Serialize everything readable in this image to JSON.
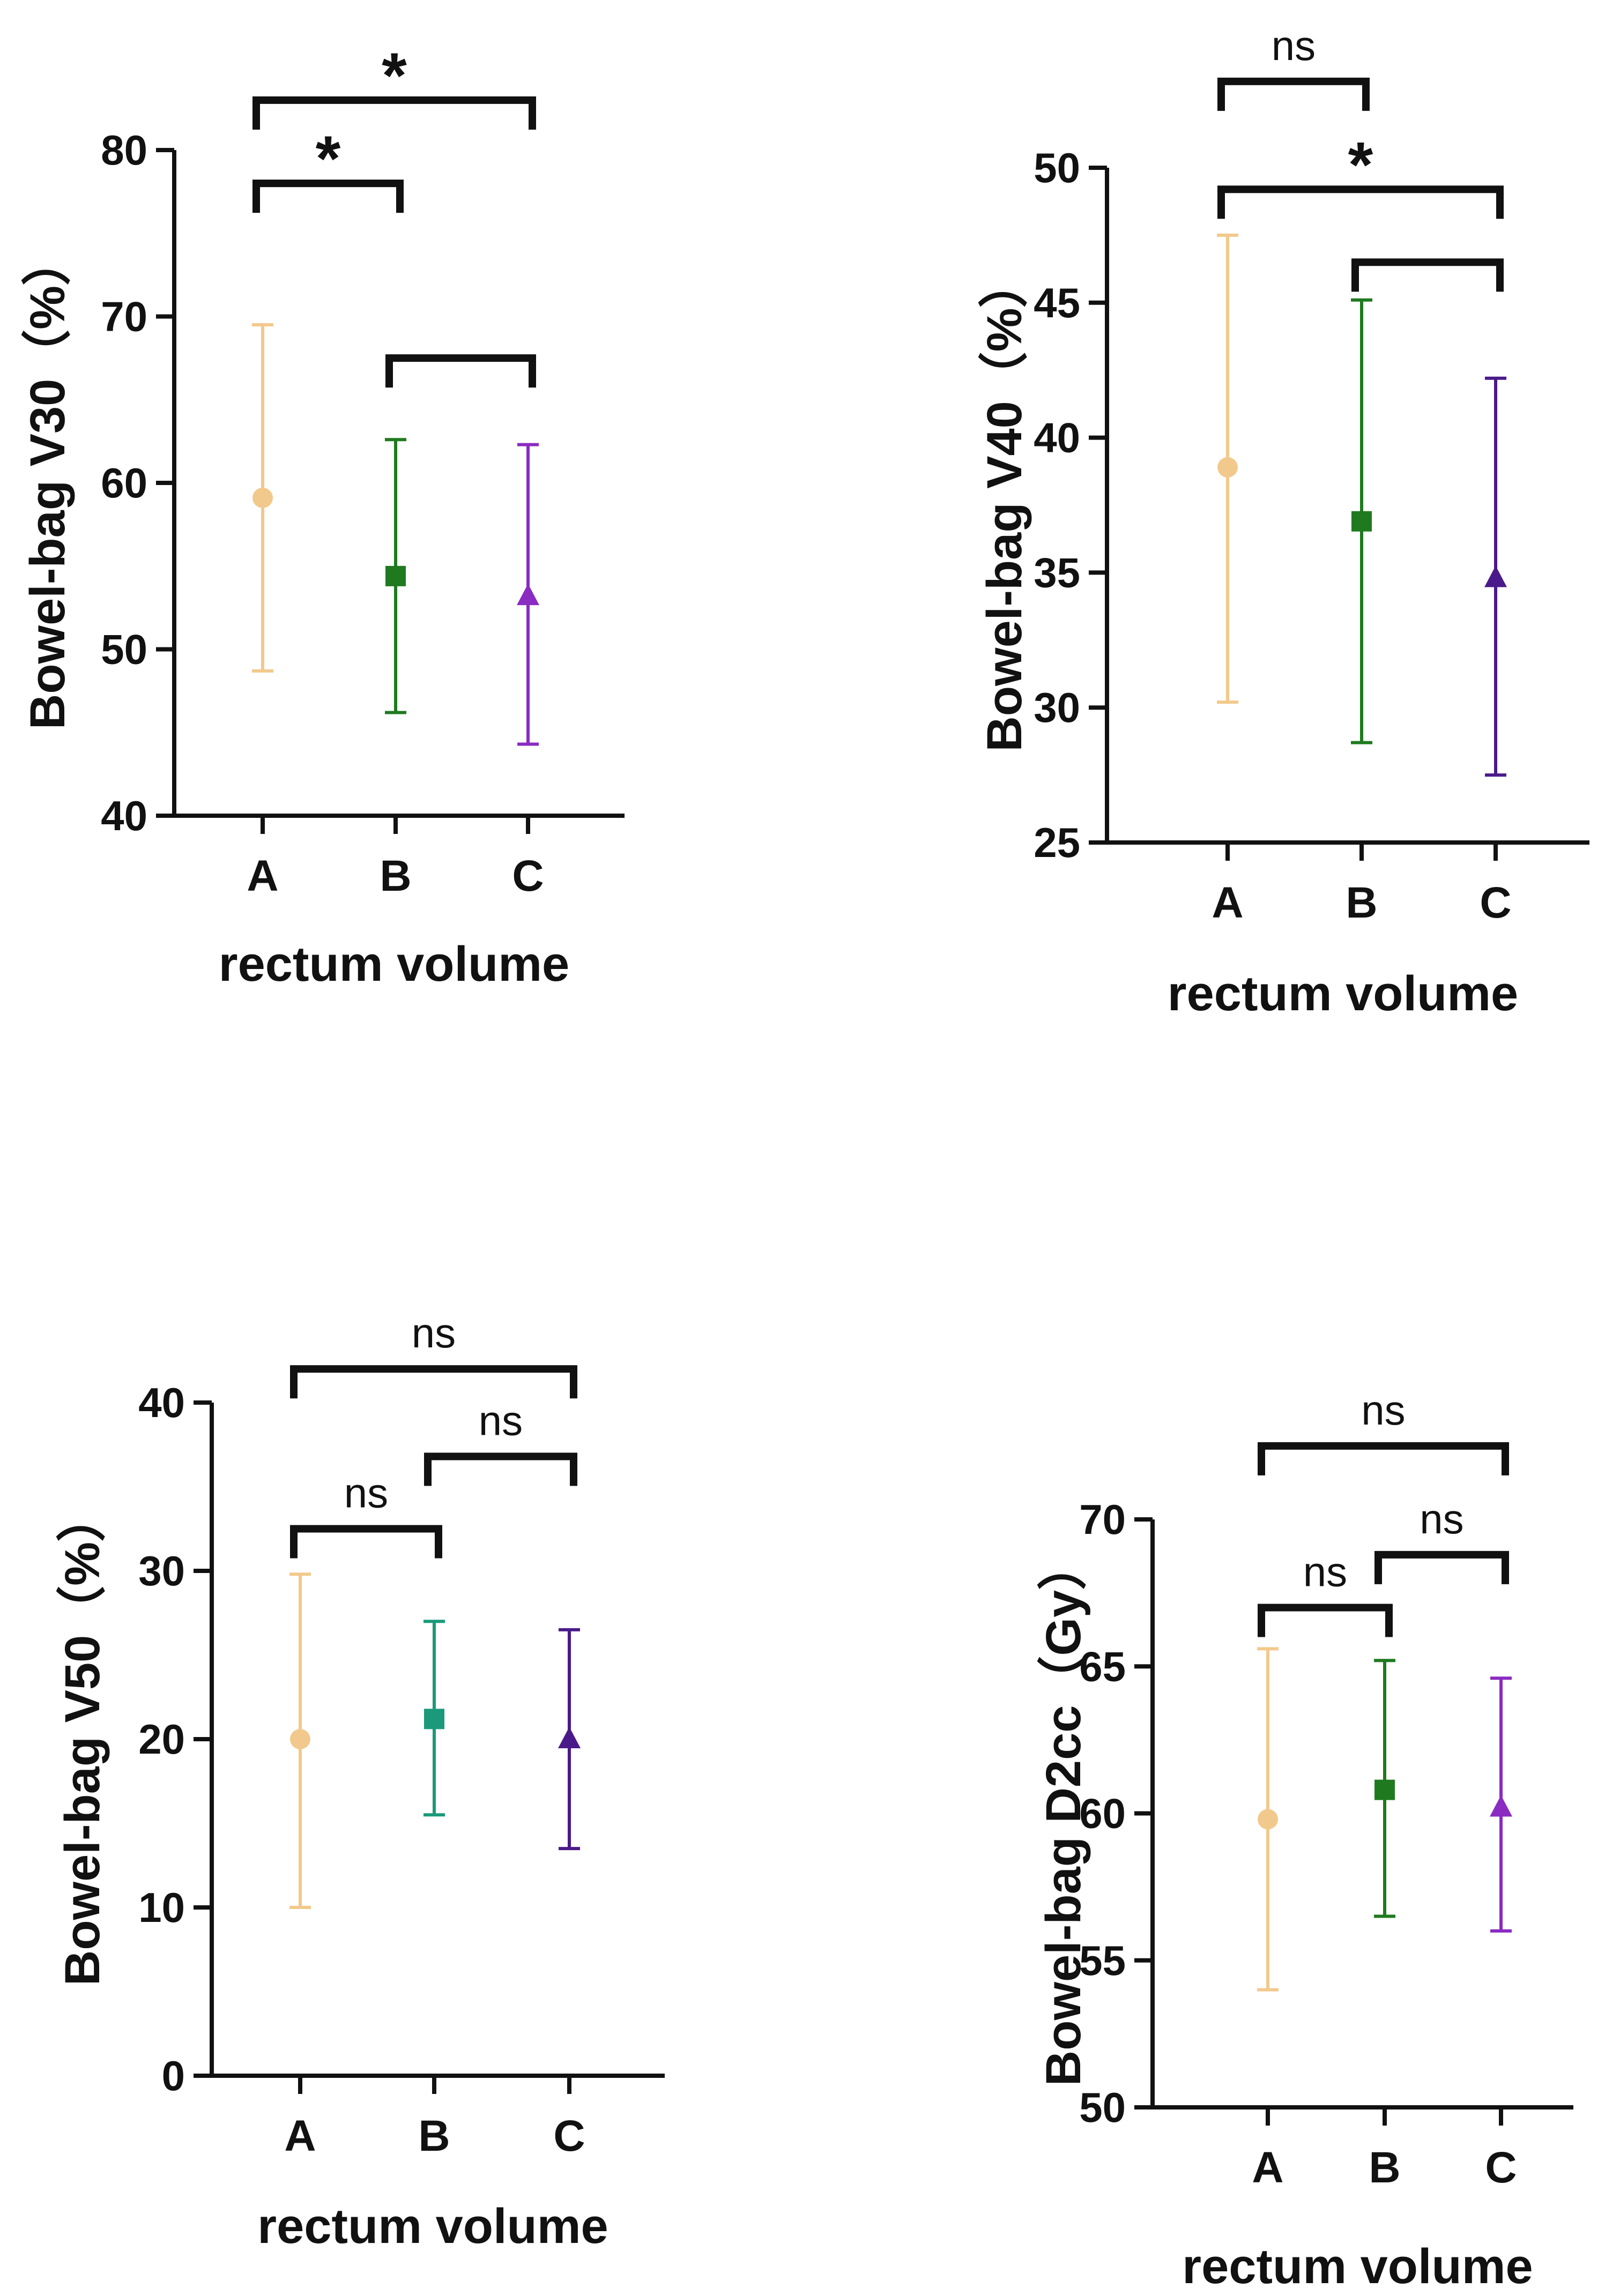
{
  "chart_data": [
    {
      "type": "scatter",
      "title": "",
      "xlabel": "rectum volume",
      "ylabel": "Bowel-bag V30（%）",
      "ylim": [
        40,
        80
      ],
      "yticks": [
        40,
        50,
        60,
        70,
        80
      ],
      "categories": [
        "A",
        "B",
        "C"
      ],
      "series": [
        {
          "name": "A",
          "mean": 59.1,
          "low": 48.7,
          "high": 69.5,
          "color": "#f2c98c",
          "marker": "circle"
        },
        {
          "name": "B",
          "mean": 54.4,
          "low": 46.2,
          "high": 62.6,
          "color": "#1f7a1f",
          "marker": "square"
        },
        {
          "name": "C",
          "mean": 53.2,
          "low": 44.3,
          "high": 62.3,
          "color": "#8a2bc2",
          "marker": "triangle"
        }
      ],
      "comparisons": [
        {
          "from": "A",
          "to": "C",
          "label": "*",
          "y": 83
        },
        {
          "from": "A",
          "to": "B",
          "label": "*",
          "y": 78
        },
        {
          "from": "B",
          "to": "C",
          "label": "",
          "y": 67.5
        }
      ]
    },
    {
      "type": "scatter",
      "title": "",
      "xlabel": "rectum volume",
      "ylabel": "Bowel-bag V40（%）",
      "ylim": [
        25,
        50
      ],
      "yticks": [
        25,
        30,
        35,
        40,
        45,
        50
      ],
      "categories": [
        "A",
        "B",
        "C"
      ],
      "series": [
        {
          "name": "A",
          "mean": 38.9,
          "low": 30.2,
          "high": 47.5,
          "color": "#f2c98c",
          "marker": "circle"
        },
        {
          "name": "B",
          "mean": 36.9,
          "low": 28.7,
          "high": 45.1,
          "color": "#1f7a1f",
          "marker": "square"
        },
        {
          "name": "C",
          "mean": 34.8,
          "low": 27.5,
          "high": 42.2,
          "color": "#4b1a8a",
          "marker": "triangle"
        }
      ],
      "comparisons": [
        {
          "from": "A",
          "to": "B",
          "label": "ns",
          "y": 53.2
        },
        {
          "from": "A",
          "to": "C",
          "label": "*",
          "y": 49.2
        },
        {
          "from": "B",
          "to": "C",
          "label": "",
          "y": 46.5
        }
      ]
    },
    {
      "type": "scatter",
      "title": "",
      "xlabel": "rectum volume",
      "ylabel": "Bowel-bag V50（%）",
      "ylim": [
        0,
        40
      ],
      "yticks": [
        0,
        10,
        20,
        30,
        40
      ],
      "categories": [
        "A",
        "B",
        "C"
      ],
      "series": [
        {
          "name": "A",
          "mean": 20.0,
          "low": 10.0,
          "high": 29.8,
          "color": "#f2c98c",
          "marker": "circle"
        },
        {
          "name": "B",
          "mean": 21.2,
          "low": 15.5,
          "high": 27.0,
          "color": "#1a9a7a",
          "marker": "square"
        },
        {
          "name": "C",
          "mean": 20.0,
          "low": 13.5,
          "high": 26.5,
          "color": "#4b1a8a",
          "marker": "triangle"
        }
      ],
      "comparisons": [
        {
          "from": "A",
          "to": "C",
          "label": "ns",
          "y": 42
        },
        {
          "from": "B",
          "to": "C",
          "label": "ns",
          "y": 36.8
        },
        {
          "from": "A",
          "to": "B",
          "label": "ns",
          "y": 32.5
        }
      ]
    },
    {
      "type": "scatter",
      "title": "",
      "xlabel": "rectum volume",
      "ylabel": "Bowel-bag D2cc（Gy）",
      "ylim": [
        50,
        70
      ],
      "yticks": [
        50,
        55,
        60,
        65,
        70
      ],
      "categories": [
        "A",
        "B",
        "C"
      ],
      "series": [
        {
          "name": "A",
          "mean": 59.8,
          "low": 54.0,
          "high": 65.6,
          "color": "#f2c98c",
          "marker": "circle"
        },
        {
          "name": "B",
          "mean": 60.8,
          "low": 56.5,
          "high": 65.2,
          "color": "#1f7a1f",
          "marker": "square"
        },
        {
          "name": "C",
          "mean": 60.2,
          "low": 56.0,
          "high": 64.6,
          "color": "#8a2bc2",
          "marker": "triangle"
        }
      ],
      "comparisons": [
        {
          "from": "A",
          "to": "C",
          "label": "ns",
          "y": 72.5
        },
        {
          "from": "B",
          "to": "C",
          "label": "ns",
          "y": 68.8
        },
        {
          "from": "A",
          "to": "B",
          "label": "ns",
          "y": 67
        }
      ]
    }
  ]
}
